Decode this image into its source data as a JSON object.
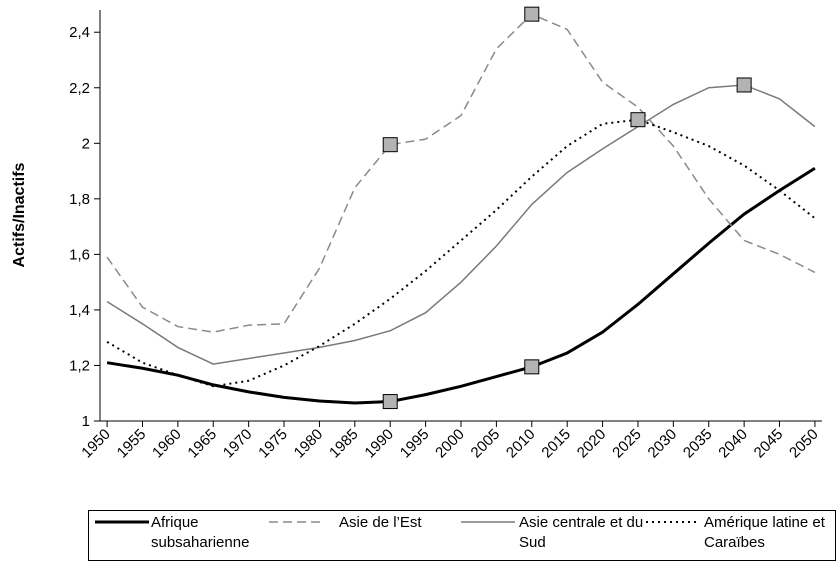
{
  "chart_data": {
    "type": "line",
    "y_label": "Actifs/Inactifs",
    "x": [
      1950,
      1955,
      1960,
      1965,
      1970,
      1975,
      1980,
      1985,
      1990,
      1995,
      2000,
      2005,
      2010,
      2015,
      2020,
      2025,
      2030,
      2035,
      2040,
      2045,
      2050
    ],
    "xlim": [
      1949,
      2051
    ],
    "xticks": [
      1950,
      1955,
      1960,
      1965,
      1970,
      1975,
      1980,
      1985,
      1990,
      1995,
      2000,
      2005,
      2010,
      2015,
      2020,
      2025,
      2030,
      2035,
      2040,
      2045,
      2050
    ],
    "ylim": [
      1,
      2.48
    ],
    "yticks": [
      1,
      {
        "value": 1.2,
        "label": "1,2"
      },
      {
        "value": 1.4,
        "label": "1,4"
      },
      {
        "value": 1.6,
        "label": "1,6"
      },
      {
        "value": 1.8,
        "label": "1,8"
      },
      2,
      {
        "value": 2.2,
        "label": "2,2"
      },
      {
        "value": 2.4,
        "label": "2,4"
      }
    ],
    "series": [
      {
        "name": "Afrique subsaharienne",
        "color": "#000000",
        "style": "solid",
        "width": 3,
        "values": [
          1.21,
          1.19,
          1.165,
          1.13,
          1.105,
          1.085,
          1.072,
          1.065,
          1.07,
          1.095,
          1.125,
          1.16,
          1.195,
          1.245,
          1.32,
          1.42,
          1.53,
          1.64,
          1.745,
          1.83,
          1.91
        ],
        "markers": [
          8,
          12
        ]
      },
      {
        "name": "Asie de l’Est",
        "color": "#8a8a8a",
        "style": "dashed",
        "width": 1.5,
        "values": [
          1.59,
          1.41,
          1.34,
          1.32,
          1.345,
          1.35,
          1.55,
          1.84,
          1.995,
          2.015,
          2.1,
          2.34,
          2.465,
          2.41,
          2.22,
          2.13,
          1.99,
          1.8,
          1.65,
          1.6,
          1.535
        ],
        "markers": [
          8,
          12
        ]
      },
      {
        "name": "Asie centrale et du Sud",
        "color": "#7a7a7a",
        "style": "solid",
        "width": 1.5,
        "values": [
          1.43,
          1.35,
          1.265,
          1.205,
          1.225,
          1.245,
          1.265,
          1.29,
          1.325,
          1.39,
          1.5,
          1.63,
          1.78,
          1.895,
          1.98,
          2.06,
          2.14,
          2.2,
          2.21,
          2.16,
          2.06
        ],
        "markers": [
          18
        ]
      },
      {
        "name": "Amérique latine et Caraïbes",
        "color": "#000000",
        "style": "dotted",
        "width": 2,
        "values": [
          1.285,
          1.21,
          1.165,
          1.125,
          1.145,
          1.2,
          1.27,
          1.35,
          1.44,
          1.54,
          1.65,
          1.76,
          1.88,
          1.99,
          2.07,
          2.085,
          2.04,
          1.99,
          1.92,
          1.83,
          1.73
        ],
        "markers": [
          15
        ]
      }
    ]
  }
}
